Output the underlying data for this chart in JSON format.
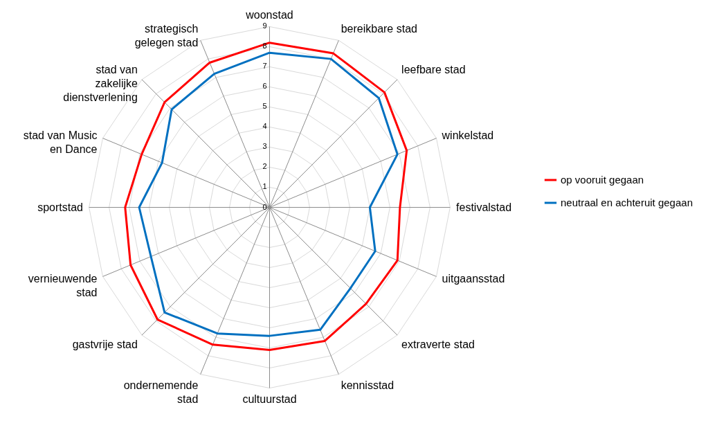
{
  "chart_data": {
    "type": "radar",
    "categories": [
      "woonstad",
      "bereikbare stad",
      "leefbare stad",
      "winkelstad",
      "festivalstad",
      "uitgaansstad",
      "extraverte stad",
      "kennisstad",
      "cultuurstad",
      "ondernemende stad",
      "gastvrije stad",
      "vernieuwende stad",
      "sportstad",
      "stad van Music en Dance",
      "stad van zakelijke dienstverlening",
      "strategisch gelegen stad"
    ],
    "series": [
      {
        "name": "op vooruit gegaan",
        "color": "#ff0000",
        "values": [
          8.2,
          8.3,
          8.1,
          7.4,
          6.5,
          6.9,
          6.8,
          7.2,
          7.1,
          7.4,
          7.9,
          7.5,
          7.2,
          6.9,
          7.4,
          7.8
        ]
      },
      {
        "name": "neutraal en achteruit gegaan",
        "color": "#0070c0",
        "values": [
          7.7,
          8.0,
          7.7,
          6.9,
          5.0,
          5.7,
          5.7,
          6.6,
          6.4,
          6.8,
          7.4,
          6.4,
          6.5,
          5.8,
          6.9,
          7.2
        ]
      }
    ],
    "ylim": [
      0,
      9
    ],
    "yticks": [
      0,
      1,
      2,
      3,
      4,
      5,
      6,
      7,
      8,
      9
    ],
    "grid": true,
    "legend": "right"
  }
}
